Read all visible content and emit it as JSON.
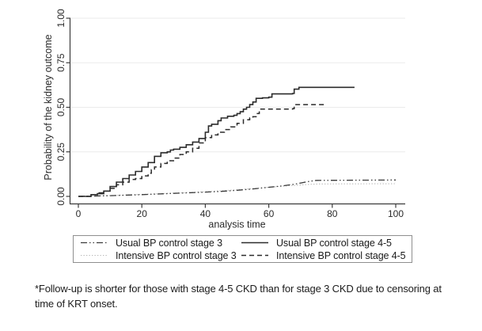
{
  "footnote": {
    "line1": "*Follow-up is shorter for those with stage 4-5 CKD than for stage 3 CKD due to censoring at",
    "line2": "time of KRT onset."
  },
  "chart_data": {
    "type": "line",
    "subtype": "kaplan-meier-step-failure-curves",
    "title": "",
    "xlabel": "analysis time",
    "ylabel": "Probability of the kidney outcome",
    "xlim": [
      0,
      100
    ],
    "ylim": [
      0,
      1
    ],
    "grid": "horizontal",
    "legend_position": "bottom-boxed",
    "x_ticks": [
      0,
      20,
      40,
      60,
      80,
      100
    ],
    "y_ticks": [
      {
        "value": 0,
        "label": "0.00"
      },
      {
        "value": 0.25,
        "label": "0.25"
      },
      {
        "value": 0.5,
        "label": "0.50"
      },
      {
        "value": 0.75,
        "label": "0.75"
      },
      {
        "value": 1,
        "label": "1.00"
      }
    ],
    "colors": {
      "axis": "#3c3c3c",
      "grid": "#ebebeb",
      "text": "#2a2a2a"
    },
    "series": [
      {
        "name": "Usual BP control stage 3",
        "color": "#3a3a3a",
        "width": 1.3,
        "dash": "8 3 1.5 3 1.5 3",
        "step": false,
        "points": [
          [
            0,
            0
          ],
          [
            10,
            0.004
          ],
          [
            20,
            0.01
          ],
          [
            30,
            0.017
          ],
          [
            40,
            0.024
          ],
          [
            45,
            0.028
          ],
          [
            50,
            0.034
          ],
          [
            55,
            0.042
          ],
          [
            60,
            0.051
          ],
          [
            64,
            0.058
          ],
          [
            68,
            0.068
          ],
          [
            71,
            0.078
          ],
          [
            73,
            0.085
          ],
          [
            75,
            0.09
          ],
          [
            100,
            0.092
          ]
        ]
      },
      {
        "name": "Usual BP control stage 4-5",
        "color": "#2b2b2b",
        "width": 1.6,
        "dash": "",
        "step": true,
        "points": [
          [
            0,
            0
          ],
          [
            4,
            0.01
          ],
          [
            6,
            0.015
          ],
          [
            8,
            0.03
          ],
          [
            10,
            0.055
          ],
          [
            12,
            0.08
          ],
          [
            14,
            0.1
          ],
          [
            16,
            0.12
          ],
          [
            18,
            0.14
          ],
          [
            20,
            0.165
          ],
          [
            22,
            0.19
          ],
          [
            24,
            0.225
          ],
          [
            26,
            0.245
          ],
          [
            28,
            0.25
          ],
          [
            29,
            0.26
          ],
          [
            30,
            0.265
          ],
          [
            32,
            0.275
          ],
          [
            34,
            0.29
          ],
          [
            36,
            0.305
          ],
          [
            38,
            0.325
          ],
          [
            40,
            0.36
          ],
          [
            41,
            0.395
          ],
          [
            42,
            0.405
          ],
          [
            44,
            0.425
          ],
          [
            45,
            0.44
          ],
          [
            47,
            0.45
          ],
          [
            49,
            0.455
          ],
          [
            50,
            0.465
          ],
          [
            51,
            0.475
          ],
          [
            52,
            0.49
          ],
          [
            53,
            0.5
          ],
          [
            54,
            0.515
          ],
          [
            55,
            0.53
          ],
          [
            56,
            0.55
          ],
          [
            58,
            0.553
          ],
          [
            60,
            0.557
          ],
          [
            61,
            0.575
          ],
          [
            67.5,
            0.578
          ],
          [
            68,
            0.602
          ],
          [
            69.5,
            0.612
          ],
          [
            87,
            0.612
          ]
        ]
      },
      {
        "name": "Intensive BP control stage 3",
        "color": "#b5b5b5",
        "width": 1.1,
        "dash": "1.3 2.2",
        "step": false,
        "points": [
          [
            0,
            0
          ],
          [
            10,
            0.005
          ],
          [
            20,
            0.011
          ],
          [
            30,
            0.018
          ],
          [
            40,
            0.026
          ],
          [
            45,
            0.031
          ],
          [
            50,
            0.037
          ],
          [
            55,
            0.044
          ],
          [
            60,
            0.051
          ],
          [
            65,
            0.058
          ],
          [
            70,
            0.064
          ],
          [
            73,
            0.068
          ],
          [
            76,
            0.07
          ],
          [
            100,
            0.071
          ]
        ]
      },
      {
        "name": "Intensive BP control stage 4-5",
        "color": "#2b2b2b",
        "width": 1.5,
        "dash": "6 4",
        "step": true,
        "points": [
          [
            0,
            0
          ],
          [
            4,
            0.01
          ],
          [
            6,
            0.02
          ],
          [
            8,
            0.03
          ],
          [
            10,
            0.045
          ],
          [
            12,
            0.065
          ],
          [
            14,
            0.08
          ],
          [
            16,
            0.095
          ],
          [
            18,
            0.1
          ],
          [
            20,
            0.115
          ],
          [
            22,
            0.13
          ],
          [
            23,
            0.15
          ],
          [
            24,
            0.165
          ],
          [
            26,
            0.185
          ],
          [
            28,
            0.2
          ],
          [
            30,
            0.215
          ],
          [
            32,
            0.235
          ],
          [
            34,
            0.25
          ],
          [
            36,
            0.27
          ],
          [
            38,
            0.3
          ],
          [
            40,
            0.33
          ],
          [
            42,
            0.345
          ],
          [
            44,
            0.36
          ],
          [
            46,
            0.375
          ],
          [
            48,
            0.39
          ],
          [
            50,
            0.41
          ],
          [
            52,
            0.43
          ],
          [
            54,
            0.44
          ],
          [
            55,
            0.447
          ],
          [
            56,
            0.465
          ],
          [
            57,
            0.49
          ],
          [
            67.5,
            0.492
          ],
          [
            68,
            0.515
          ],
          [
            78,
            0.515
          ]
        ]
      }
    ]
  }
}
